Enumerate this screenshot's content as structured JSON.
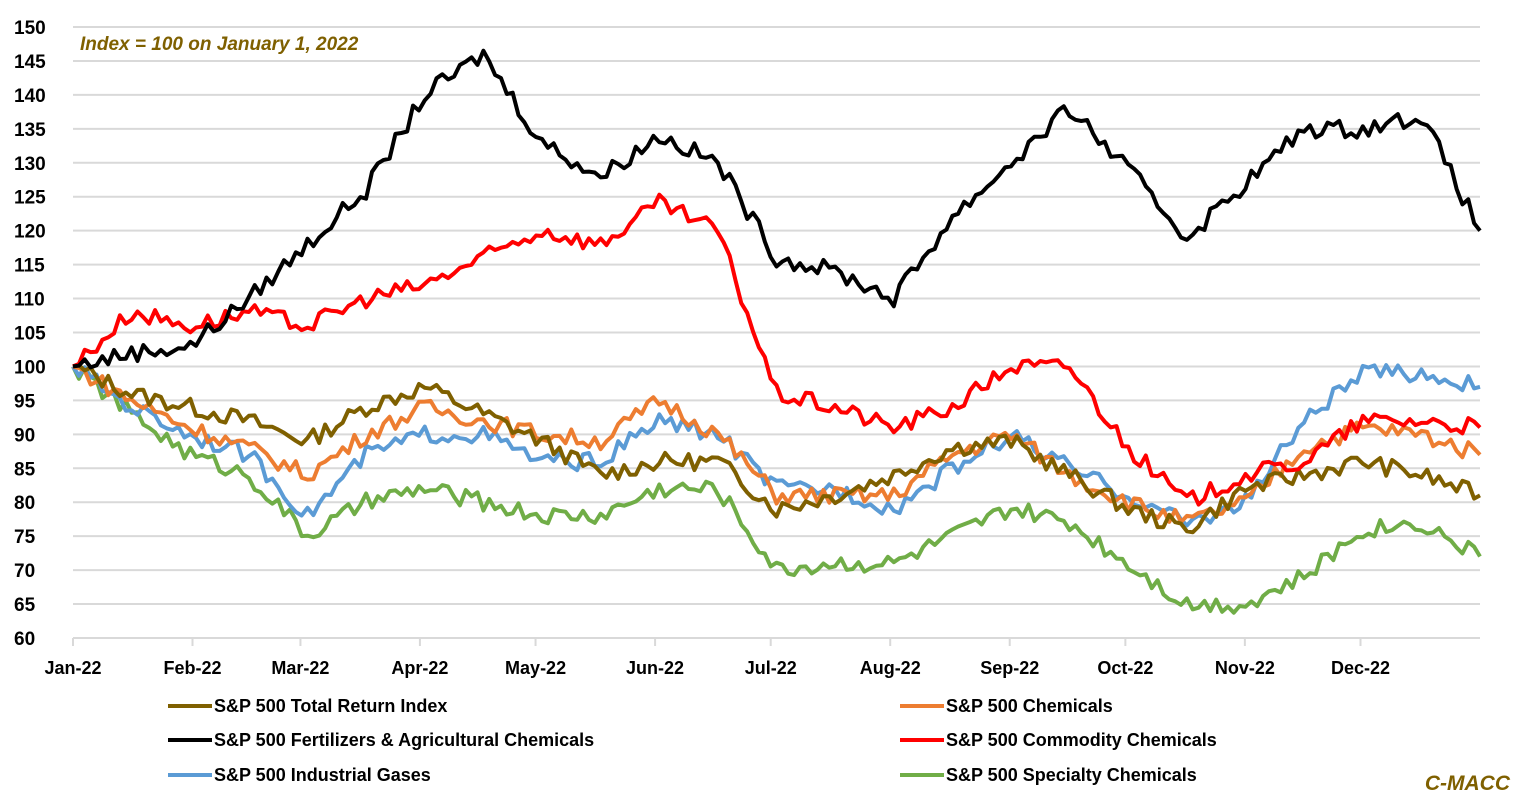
{
  "chart_data": {
    "type": "line",
    "title": "",
    "annotation": "Index = 100 on January 1, 2022",
    "source_label": "C-MACC",
    "xlabel": "",
    "ylabel": "",
    "ylim": [
      60,
      150
    ],
    "yticks": [
      60,
      65,
      70,
      75,
      80,
      85,
      90,
      95,
      100,
      105,
      110,
      115,
      120,
      125,
      130,
      135,
      140,
      145,
      150
    ],
    "xticks": [
      "Jan-22",
      "Feb-22",
      "Mar-22",
      "Apr-22",
      "May-22",
      "Jun-22",
      "Jul-22",
      "Aug-22",
      "Sep-22",
      "Oct-22",
      "Nov-22",
      "Dec-22"
    ],
    "grid": true,
    "legend_position": "bottom",
    "x": [
      0,
      0.5,
      1,
      1.5,
      2,
      2.5,
      3,
      3.5,
      4,
      4.5,
      5,
      5.5,
      6,
      6.5,
      7,
      7.5,
      8,
      8.5,
      9,
      9.5,
      10,
      10.5,
      11,
      11.5,
      12
    ],
    "x_unit": "months since Jan 1, 2022",
    "series": [
      {
        "name": "S&P 500 Total Return Index",
        "color": "#7f6000",
        "values": [
          100,
          96,
          94,
          92,
          89,
          94,
          97,
          93,
          89,
          84,
          86,
          86,
          79,
          81,
          84,
          88,
          89,
          84,
          79,
          76,
          82,
          84,
          86,
          84,
          81
        ]
      },
      {
        "name": "S&P 500 Chemicals",
        "color": "#ed7d31",
        "values": [
          100,
          95,
          91,
          88,
          84,
          90,
          94,
          92,
          90,
          89,
          95,
          90,
          81,
          81,
          81,
          87,
          90,
          84,
          80,
          77,
          80,
          88,
          91,
          90,
          87
        ]
      },
      {
        "name": "S&P 500 Fertilizers & Agricultural Chemicals",
        "color": "#000000",
        "values": [
          100,
          102,
          103,
          110,
          118,
          126,
          140,
          146,
          133,
          128,
          134,
          130,
          116,
          114,
          110,
          122,
          130,
          138,
          129,
          119,
          127,
          135,
          135,
          137,
          120
        ]
      },
      {
        "name": "S&P 500 Commodity Chemicals",
        "color": "#ff0000",
        "values": [
          100,
          108,
          106,
          108,
          106,
          110,
          112,
          116,
          120,
          118,
          124,
          120,
          96,
          94,
          91,
          94,
          100,
          100,
          88,
          80,
          84,
          86,
          92,
          92,
          91
        ]
      },
      {
        "name": "S&P 500 Industrial Gases",
        "color": "#5b9bd5",
        "values": [
          100,
          94,
          90,
          87,
          78,
          87,
          90,
          90,
          86,
          86,
          92,
          90,
          82,
          82,
          79,
          85,
          90,
          85,
          81,
          77,
          80,
          92,
          99,
          99,
          97
        ]
      },
      {
        "name": "S&P 500 Specialty Chemicals",
        "color": "#70ad47",
        "values": [
          100,
          93,
          87,
          84,
          75,
          80,
          82,
          80,
          78,
          78,
          82,
          82,
          70,
          71,
          71,
          75,
          79,
          77,
          71,
          65,
          65,
          69,
          76,
          77,
          72
        ]
      }
    ]
  },
  "legend": {
    "items": [
      {
        "label": "S&P 500 Total Return Index",
        "color": "#7f6000"
      },
      {
        "label": "S&P 500 Chemicals",
        "color": "#ed7d31"
      },
      {
        "label": "S&P 500 Fertilizers & Agricultural Chemicals",
        "color": "#000000"
      },
      {
        "label": "S&P 500 Commodity Chemicals",
        "color": "#ff0000"
      },
      {
        "label": "S&P 500 Industrial Gases",
        "color": "#5b9bd5"
      },
      {
        "label": "S&P 500 Specialty Chemicals",
        "color": "#70ad47"
      }
    ]
  }
}
